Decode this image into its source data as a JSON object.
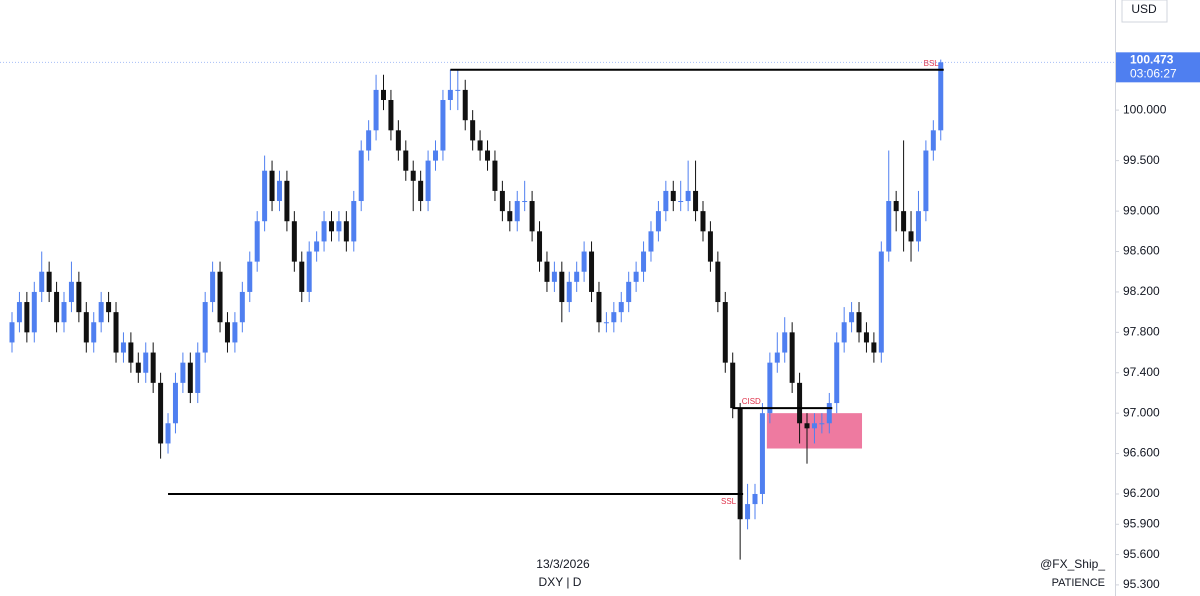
{
  "chart_data": {
    "type": "candlestick",
    "currency": "USD",
    "symbol": "DXY | D",
    "date_label": "13/3/2026",
    "author": "@FX_Ship_",
    "caption": "PATIENCE",
    "up_color": "#4f7ff0",
    "down_color": "#111111",
    "ylim": [
      95.19,
      101.09
    ],
    "yticks": [
      {
        "value": 100,
        "label": "100.000"
      },
      {
        "value": 99.5,
        "label": "99.500"
      },
      {
        "value": 99,
        "label": "99.000"
      },
      {
        "value": 98.6,
        "label": "98.600"
      },
      {
        "value": 98.2,
        "label": "98.200"
      },
      {
        "value": 97.8,
        "label": "97.800"
      },
      {
        "value": 97.4,
        "label": "97.400"
      },
      {
        "value": 97,
        "label": "97.000"
      },
      {
        "value": 96.6,
        "label": "96.600"
      },
      {
        "value": 96.2,
        "label": "96.200"
      },
      {
        "value": 95.9,
        "label": "95.900"
      },
      {
        "value": 95.6,
        "label": "95.600"
      },
      {
        "value": 95.3,
        "label": "95.300"
      }
    ],
    "last_price": {
      "value": 100.473,
      "label": "100.473",
      "countdown": "03:06:27"
    },
    "levels": [
      {
        "label": "BSL",
        "price": 100.4,
        "start": 59,
        "end": 125
      },
      {
        "label": "SSL",
        "price": 96.2,
        "start": 21,
        "end": 98
      },
      {
        "label": "CISD",
        "price": 97.05,
        "start": 97,
        "end": 110
      }
    ],
    "zone": {
      "top": 97.0,
      "bottom": 96.65,
      "start": 102,
      "end": 114,
      "color": "#ee7aa0"
    },
    "ohlc": [
      [
        97.7,
        98.0,
        97.6,
        97.9
      ],
      [
        97.9,
        98.2,
        97.8,
        98.1
      ],
      [
        98.1,
        98.2,
        97.7,
        97.8
      ],
      [
        97.8,
        98.3,
        97.7,
        98.2
      ],
      [
        98.2,
        98.6,
        98.1,
        98.4
      ],
      [
        98.4,
        98.5,
        98.1,
        98.2
      ],
      [
        98.2,
        98.3,
        97.8,
        97.9
      ],
      [
        97.9,
        98.2,
        97.8,
        98.1
      ],
      [
        98.1,
        98.5,
        98.0,
        98.3
      ],
      [
        98.3,
        98.4,
        97.9,
        98.0
      ],
      [
        98.0,
        98.1,
        97.6,
        97.7
      ],
      [
        97.7,
        98.0,
        97.6,
        97.9
      ],
      [
        97.9,
        98.2,
        97.8,
        98.1
      ],
      [
        98.1,
        98.2,
        97.9,
        98.0
      ],
      [
        98.0,
        98.1,
        97.5,
        97.6
      ],
      [
        97.6,
        97.8,
        97.5,
        97.7
      ],
      [
        97.7,
        97.8,
        97.4,
        97.5
      ],
      [
        97.5,
        97.6,
        97.3,
        97.4
      ],
      [
        97.4,
        97.7,
        97.3,
        97.6
      ],
      [
        97.6,
        97.7,
        97.2,
        97.3
      ],
      [
        97.3,
        97.4,
        96.55,
        96.7
      ],
      [
        96.7,
        97.0,
        96.6,
        96.9
      ],
      [
        96.9,
        97.4,
        96.8,
        97.3
      ],
      [
        97.3,
        97.6,
        97.2,
        97.5
      ],
      [
        97.5,
        97.6,
        97.1,
        97.2
      ],
      [
        97.2,
        97.7,
        97.1,
        97.6
      ],
      [
        97.6,
        98.2,
        97.5,
        98.1
      ],
      [
        98.1,
        98.5,
        98.0,
        98.4
      ],
      [
        98.4,
        98.5,
        97.8,
        97.9
      ],
      [
        97.9,
        98.0,
        97.6,
        97.7
      ],
      [
        97.7,
        98.0,
        97.6,
        97.9
      ],
      [
        97.9,
        98.3,
        97.8,
        98.2
      ],
      [
        98.2,
        98.6,
        98.1,
        98.5
      ],
      [
        98.5,
        99.0,
        98.4,
        98.9
      ],
      [
        98.9,
        99.55,
        98.8,
        99.4
      ],
      [
        99.4,
        99.5,
        99.0,
        99.1
      ],
      [
        99.1,
        99.4,
        99.0,
        99.3
      ],
      [
        99.3,
        99.4,
        98.8,
        98.9
      ],
      [
        98.9,
        99.0,
        98.4,
        98.5
      ],
      [
        98.5,
        98.6,
        98.1,
        98.2
      ],
      [
        98.2,
        98.7,
        98.1,
        98.6
      ],
      [
        98.6,
        98.8,
        98.5,
        98.7
      ],
      [
        98.7,
        99.0,
        98.6,
        98.9
      ],
      [
        98.9,
        99.0,
        98.7,
        98.8
      ],
      [
        98.8,
        99.0,
        98.7,
        98.9
      ],
      [
        98.9,
        99.0,
        98.6,
        98.7
      ],
      [
        98.7,
        99.2,
        98.6,
        99.1
      ],
      [
        99.1,
        99.7,
        99.0,
        99.6
      ],
      [
        99.6,
        99.9,
        99.5,
        99.8
      ],
      [
        99.8,
        100.35,
        99.7,
        100.2
      ],
      [
        100.2,
        100.35,
        100.0,
        100.1
      ],
      [
        100.1,
        100.2,
        99.7,
        99.8
      ],
      [
        99.8,
        99.9,
        99.5,
        99.6
      ],
      [
        99.6,
        99.7,
        99.3,
        99.4
      ],
      [
        99.4,
        99.5,
        99.0,
        99.3
      ],
      [
        99.3,
        99.4,
        99.0,
        99.1
      ],
      [
        99.1,
        99.6,
        99.0,
        99.5
      ],
      [
        99.5,
        99.7,
        99.4,
        99.6
      ],
      [
        99.6,
        100.2,
        99.5,
        100.1
      ],
      [
        100.1,
        100.4,
        100.0,
        100.2
      ],
      [
        100.2,
        100.4,
        100.0,
        100.2
      ],
      [
        100.2,
        100.3,
        99.8,
        99.9
      ],
      [
        99.9,
        100.0,
        99.6,
        99.7
      ],
      [
        99.7,
        99.8,
        99.5,
        99.6
      ],
      [
        99.6,
        99.7,
        99.4,
        99.5
      ],
      [
        99.5,
        99.6,
        99.1,
        99.2
      ],
      [
        99.2,
        99.3,
        98.9,
        99.0
      ],
      [
        99.0,
        99.1,
        98.8,
        98.9
      ],
      [
        98.9,
        99.2,
        98.8,
        99.1
      ],
      [
        99.1,
        99.3,
        99.0,
        99.1
      ],
      [
        99.1,
        99.2,
        98.7,
        98.8
      ],
      [
        98.8,
        98.9,
        98.4,
        98.5
      ],
      [
        98.5,
        98.6,
        98.2,
        98.3
      ],
      [
        98.3,
        98.5,
        98.2,
        98.4
      ],
      [
        98.4,
        98.5,
        97.9,
        98.1
      ],
      [
        98.1,
        98.4,
        98.0,
        98.3
      ],
      [
        98.3,
        98.5,
        98.2,
        98.4
      ],
      [
        98.4,
        98.7,
        98.3,
        98.6
      ],
      [
        98.6,
        98.7,
        98.1,
        98.2
      ],
      [
        98.2,
        98.3,
        97.8,
        97.9
      ],
      [
        97.9,
        98.0,
        97.8,
        97.9
      ],
      [
        97.9,
        98.1,
        97.8,
        98.0
      ],
      [
        98.0,
        98.2,
        97.9,
        98.1
      ],
      [
        98.1,
        98.4,
        98.0,
        98.3
      ],
      [
        98.3,
        98.5,
        98.2,
        98.4
      ],
      [
        98.4,
        98.7,
        98.3,
        98.6
      ],
      [
        98.6,
        98.9,
        98.5,
        98.8
      ],
      [
        98.8,
        99.1,
        98.7,
        99.0
      ],
      [
        99.0,
        99.3,
        98.9,
        99.2
      ],
      [
        99.2,
        99.3,
        99.0,
        99.1
      ],
      [
        99.1,
        99.3,
        99.0,
        99.1
      ],
      [
        99.1,
        99.5,
        99.0,
        99.2
      ],
      [
        99.2,
        99.5,
        98.9,
        99.0
      ],
      [
        99.0,
        99.1,
        98.7,
        98.8
      ],
      [
        98.8,
        98.9,
        98.4,
        98.5
      ],
      [
        98.5,
        98.6,
        98.0,
        98.1
      ],
      [
        98.1,
        98.2,
        97.4,
        97.5
      ],
      [
        97.5,
        97.6,
        96.95,
        97.05
      ],
      [
        97.05,
        97.1,
        95.55,
        95.95
      ],
      [
        95.95,
        96.3,
        95.85,
        96.1
      ],
      [
        96.1,
        96.3,
        95.95,
        96.2
      ],
      [
        96.2,
        97.1,
        96.1,
        97.0
      ],
      [
        97.0,
        97.6,
        96.9,
        97.5
      ],
      [
        97.5,
        97.8,
        97.4,
        97.6
      ],
      [
        97.6,
        97.95,
        97.5,
        97.8
      ],
      [
        97.8,
        97.9,
        97.2,
        97.3
      ],
      [
        97.3,
        97.4,
        96.7,
        96.9
      ],
      [
        96.9,
        97.0,
        96.5,
        96.85
      ],
      [
        96.85,
        97.0,
        96.7,
        96.9
      ],
      [
        96.9,
        97.0,
        96.8,
        96.9
      ],
      [
        96.9,
        97.2,
        96.8,
        97.1
      ],
      [
        97.1,
        97.8,
        97.0,
        97.7
      ],
      [
        97.7,
        98.05,
        97.6,
        97.9
      ],
      [
        97.9,
        98.1,
        97.8,
        98.0
      ],
      [
        98.0,
        98.1,
        97.7,
        97.8
      ],
      [
        97.8,
        97.9,
        97.6,
        97.7
      ],
      [
        97.7,
        97.8,
        97.5,
        97.6
      ],
      [
        97.6,
        98.7,
        97.5,
        98.6
      ],
      [
        98.6,
        99.6,
        98.5,
        99.1
      ],
      [
        99.1,
        99.2,
        98.8,
        99.0
      ],
      [
        99.0,
        99.7,
        98.6,
        98.8
      ],
      [
        98.8,
        99.0,
        98.5,
        98.7
      ],
      [
        98.7,
        99.2,
        98.6,
        99.0
      ],
      [
        99.0,
        99.7,
        98.9,
        99.6
      ],
      [
        99.6,
        99.9,
        99.5,
        99.8
      ],
      [
        99.8,
        100.5,
        99.7,
        100.473
      ]
    ]
  }
}
